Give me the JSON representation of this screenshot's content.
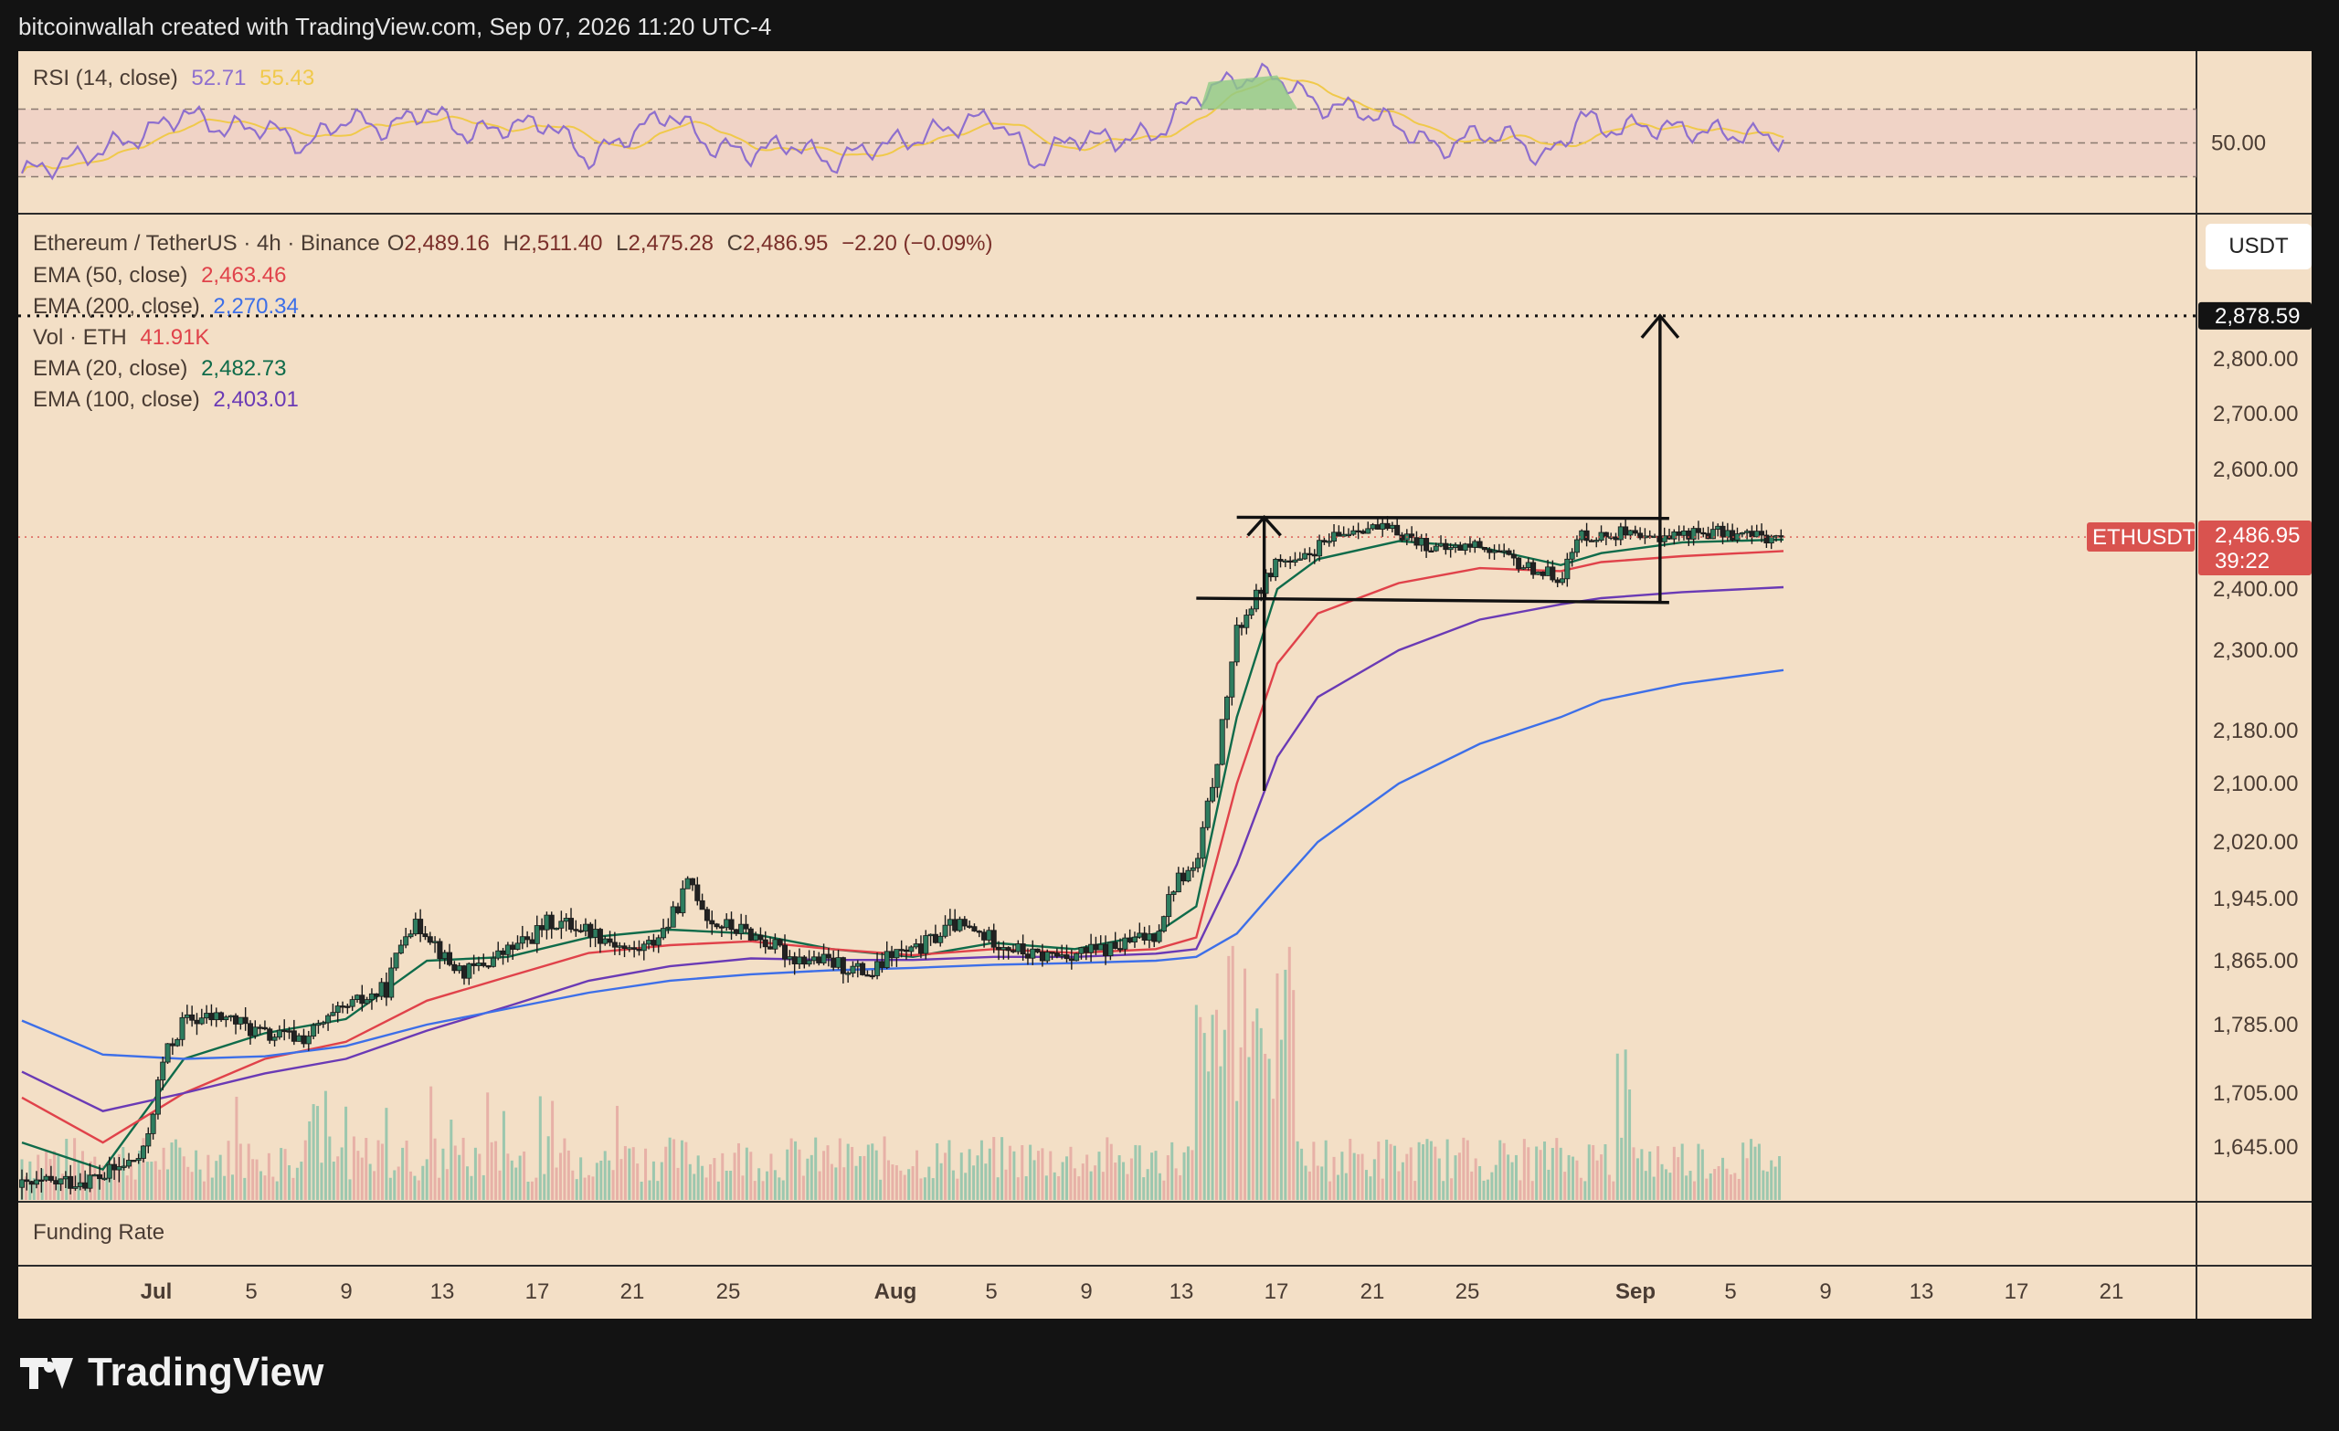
{
  "header": {
    "text": "bitcoinwallah created with TradingView.com, Sep 07, 2026 11:20 UTC-4"
  },
  "brand": {
    "name": "TradingView"
  },
  "colors": {
    "panel_bg": "#f3dfc6",
    "frame": "#131313",
    "rsi_line": "#8e6fce",
    "rsi_ma": "#f0c94a",
    "ema20": "#0f6b4a",
    "ema50": "#e0424a",
    "ema100": "#6a3ab5",
    "ema200": "#3d6fe8",
    "candle_up": "#1f7a5a",
    "candle_down": "#c24a4a",
    "price_tag": "#d9534f",
    "target_tag": "#131313"
  },
  "rsi_panel": {
    "label": "RSI (14, close)",
    "rsi_value": "52.71",
    "ma_value": "55.43",
    "level_label": "50.00"
  },
  "main_panel": {
    "title": "Ethereum / TetherUS · 4h · Binance",
    "ohlc": {
      "o_label": "O",
      "o": "2,489.16",
      "h_label": "H",
      "h": "2,511.40",
      "l_label": "L",
      "l": "2,475.28",
      "c_label": "C",
      "c": "2,486.95",
      "change": "−2.20 (−0.09%)"
    },
    "indicators": [
      {
        "label": "EMA (50, close)",
        "value": "2,463.46",
        "color": "#e0424a"
      },
      {
        "label": "EMA (200, close)",
        "value": "2,270.34",
        "color": "#3d6fe8"
      },
      {
        "label": "Vol · ETH",
        "value": "41.91K",
        "color": "#e0424a"
      },
      {
        "label": "EMA (20, close)",
        "value": "2,482.73",
        "color": "#0f6b4a"
      },
      {
        "label": "EMA (100, close)",
        "value": "2,403.01",
        "color": "#6a3ab5"
      }
    ],
    "currency_button": "USDT",
    "symbol_tag": "ETHUSDT",
    "price_tag": "2,486.95",
    "countdown": "39:22",
    "target_tag": "2,878.59"
  },
  "funding_panel": {
    "label": "Funding Rate"
  },
  "chart_data": {
    "type": "candlestick",
    "symbol": "ETHUSDT",
    "timeframe": "4h",
    "x_ticks": [
      "Jul",
      "5",
      "9",
      "13",
      "17",
      "21",
      "25",
      "Aug",
      "5",
      "9",
      "13",
      "17",
      "21",
      "25",
      "Sep",
      "5",
      "9",
      "13",
      "17",
      "21"
    ],
    "y_ticks": [
      "2,800.00",
      "2,700.00",
      "2,600.00",
      "2,400.00",
      "2,300.00",
      "2,180.00",
      "2,100.00",
      "2,020.00",
      "1,945.00",
      "1,865.00",
      "1,785.00",
      "1,705.00",
      "1,645.00"
    ],
    "y_tick_values": [
      2800,
      2700,
      2600,
      2400,
      2300,
      2180,
      2100,
      2020,
      1945,
      1865,
      1785,
      1705,
      1645
    ],
    "last_price": 2486.95,
    "target_price": 2878.59,
    "close_path": [
      [
        0,
        1600
      ],
      [
        4,
        1612
      ],
      [
        6,
        1636
      ],
      [
        7,
        1745
      ],
      [
        8,
        1790
      ],
      [
        10,
        1795
      ],
      [
        12,
        1772
      ],
      [
        14,
        1770
      ],
      [
        16,
        1805
      ],
      [
        18,
        1830
      ],
      [
        19,
        1910
      ],
      [
        20,
        1905
      ],
      [
        21,
        1862
      ],
      [
        22,
        1850
      ],
      [
        25,
        1892
      ],
      [
        26,
        1915
      ],
      [
        27,
        1912
      ],
      [
        28,
        1905
      ],
      [
        29,
        1892
      ],
      [
        30,
        1877
      ],
      [
        31,
        1885
      ],
      [
        32,
        1915
      ],
      [
        33,
        1970
      ],
      [
        34,
        1915
      ],
      [
        35,
        1908
      ],
      [
        36,
        1900
      ],
      [
        38,
        1870
      ],
      [
        39,
        1867
      ],
      [
        40,
        1862
      ],
      [
        42,
        1848
      ],
      [
        43,
        1875
      ],
      [
        44,
        1875
      ],
      [
        46,
        1912
      ],
      [
        48,
        1892
      ],
      [
        50,
        1870
      ],
      [
        52,
        1875
      ],
      [
        53,
        1877
      ],
      [
        54,
        1882
      ],
      [
        56,
        1900
      ],
      [
        57,
        1970
      ],
      [
        58,
        1985
      ],
      [
        59,
        2130
      ],
      [
        60,
        2330
      ],
      [
        61,
        2390
      ],
      [
        62,
        2450
      ],
      [
        63,
        2440
      ],
      [
        64,
        2470
      ],
      [
        66,
        2505
      ],
      [
        68,
        2495
      ],
      [
        70,
        2465
      ],
      [
        72,
        2475
      ],
      [
        74,
        2440
      ],
      [
        76,
        2420
      ],
      [
        77,
        2492
      ],
      [
        78,
        2488
      ],
      [
        79,
        2495
      ],
      [
        80,
        2478
      ],
      [
        81,
        2490
      ],
      [
        82,
        2492
      ],
      [
        83,
        2495
      ],
      [
        84,
        2494
      ],
      [
        85,
        2490
      ],
      [
        86,
        2488
      ],
      [
        87,
        2487
      ]
    ],
    "ema_series": [
      {
        "name": "EMA (20, close)",
        "color": "#0f6b4a",
        "points": [
          [
            0,
            1650
          ],
          [
            4,
            1620
          ],
          [
            8,
            1745
          ],
          [
            12,
            1775
          ],
          [
            16,
            1792
          ],
          [
            20,
            1865
          ],
          [
            24,
            1870
          ],
          [
            28,
            1895
          ],
          [
            32,
            1905
          ],
          [
            36,
            1900
          ],
          [
            40,
            1880
          ],
          [
            44,
            1870
          ],
          [
            48,
            1888
          ],
          [
            52,
            1880
          ],
          [
            56,
            1900
          ],
          [
            58,
            1935
          ],
          [
            60,
            2200
          ],
          [
            62,
            2400
          ],
          [
            64,
            2450
          ],
          [
            68,
            2480
          ],
          [
            72,
            2470
          ],
          [
            76,
            2440
          ],
          [
            78,
            2460
          ],
          [
            82,
            2478
          ],
          [
            87,
            2482.73
          ]
        ]
      },
      {
        "name": "EMA (50, close)",
        "color": "#e0424a",
        "points": [
          [
            0,
            1700
          ],
          [
            4,
            1650
          ],
          [
            8,
            1705
          ],
          [
            12,
            1745
          ],
          [
            16,
            1765
          ],
          [
            20,
            1815
          ],
          [
            24,
            1845
          ],
          [
            28,
            1875
          ],
          [
            32,
            1885
          ],
          [
            36,
            1890
          ],
          [
            40,
            1880
          ],
          [
            44,
            1872
          ],
          [
            48,
            1880
          ],
          [
            52,
            1875
          ],
          [
            56,
            1880
          ],
          [
            58,
            1895
          ],
          [
            60,
            2100
          ],
          [
            62,
            2280
          ],
          [
            64,
            2360
          ],
          [
            68,
            2410
          ],
          [
            72,
            2435
          ],
          [
            76,
            2430
          ],
          [
            78,
            2445
          ],
          [
            82,
            2455
          ],
          [
            87,
            2463.46
          ]
        ]
      },
      {
        "name": "EMA (100, close)",
        "color": "#6a3ab5",
        "points": [
          [
            0,
            1730
          ],
          [
            4,
            1685
          ],
          [
            8,
            1705
          ],
          [
            12,
            1728
          ],
          [
            16,
            1745
          ],
          [
            20,
            1778
          ],
          [
            24,
            1808
          ],
          [
            28,
            1840
          ],
          [
            32,
            1858
          ],
          [
            36,
            1868
          ],
          [
            40,
            1866
          ],
          [
            44,
            1866
          ],
          [
            48,
            1870
          ],
          [
            52,
            1870
          ],
          [
            56,
            1874
          ],
          [
            58,
            1880
          ],
          [
            60,
            1990
          ],
          [
            62,
            2140
          ],
          [
            64,
            2230
          ],
          [
            68,
            2300
          ],
          [
            72,
            2350
          ],
          [
            76,
            2375
          ],
          [
            78,
            2385
          ],
          [
            82,
            2395
          ],
          [
            87,
            2403.01
          ]
        ]
      },
      {
        "name": "EMA (200, close)",
        "color": "#3d6fe8",
        "points": [
          [
            0,
            1790
          ],
          [
            4,
            1750
          ],
          [
            8,
            1745
          ],
          [
            12,
            1748
          ],
          [
            16,
            1760
          ],
          [
            20,
            1785
          ],
          [
            24,
            1805
          ],
          [
            28,
            1825
          ],
          [
            32,
            1840
          ],
          [
            36,
            1848
          ],
          [
            40,
            1853
          ],
          [
            44,
            1856
          ],
          [
            48,
            1860
          ],
          [
            52,
            1862
          ],
          [
            56,
            1865
          ],
          [
            58,
            1870
          ],
          [
            60,
            1900
          ],
          [
            62,
            1960
          ],
          [
            64,
            2020
          ],
          [
            68,
            2100
          ],
          [
            72,
            2160
          ],
          [
            76,
            2200
          ],
          [
            78,
            2225
          ],
          [
            82,
            2250
          ],
          [
            87,
            2270.34
          ]
        ]
      }
    ],
    "rsi": {
      "level": 50,
      "upper": 70,
      "lower": 30,
      "points": [
        [
          0,
          32
        ],
        [
          3,
          42
        ],
        [
          6,
          55
        ],
        [
          8,
          68
        ],
        [
          10,
          58
        ],
        [
          12,
          60
        ],
        [
          14,
          48
        ],
        [
          16,
          65
        ],
        [
          18,
          58
        ],
        [
          20,
          70
        ],
        [
          22,
          55
        ],
        [
          24,
          60
        ],
        [
          26,
          62
        ],
        [
          28,
          40
        ],
        [
          30,
          55
        ],
        [
          32,
          68
        ],
        [
          34,
          48
        ],
        [
          36,
          44
        ],
        [
          38,
          50
        ],
        [
          40,
          38
        ],
        [
          42,
          48
        ],
        [
          44,
          52
        ],
        [
          46,
          60
        ],
        [
          48,
          66
        ],
        [
          50,
          38
        ],
        [
          52,
          54
        ],
        [
          54,
          52
        ],
        [
          56,
          55
        ],
        [
          58,
          78
        ],
        [
          60,
          88
        ],
        [
          62,
          90
        ],
        [
          64,
          72
        ],
        [
          66,
          70
        ],
        [
          68,
          60
        ],
        [
          70,
          46
        ],
        [
          72,
          56
        ],
        [
          74,
          52
        ],
        [
          75,
          40
        ],
        [
          76,
          48
        ],
        [
          77,
          68
        ],
        [
          78,
          58
        ],
        [
          80,
          60
        ],
        [
          82,
          58
        ],
        [
          84,
          56
        ],
        [
          86,
          54
        ],
        [
          87,
          52.71
        ]
      ]
    },
    "annotations": {
      "channel_upper": [
        [
          60,
          2520
        ],
        [
          80,
          2518
        ]
      ],
      "channel_lower": [
        [
          58,
          2385
        ],
        [
          80,
          2378
        ]
      ],
      "flagpole": [
        [
          60,
          2090
        ],
        [
          60,
          2520
        ]
      ],
      "target_arrow": [
        [
          80,
          2378
        ],
        [
          80,
          2878.59
        ]
      ],
      "target_line": 2878.59
    }
  }
}
